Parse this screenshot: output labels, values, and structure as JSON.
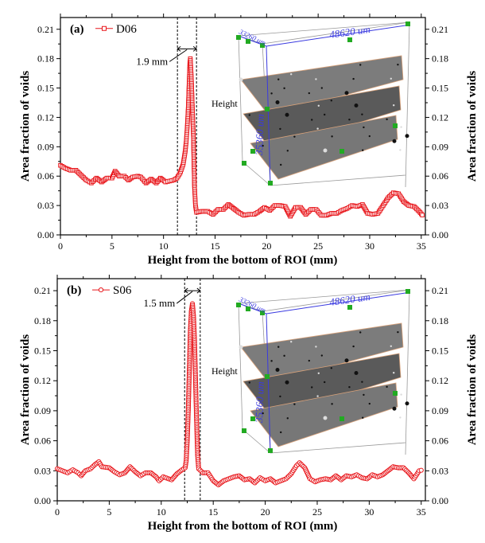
{
  "chart_data": [
    {
      "type": "scatter",
      "panel_label": "(a)",
      "xlabel": "Height from the bottom of ROI (mm)",
      "ylabel": "Area fraction of voids",
      "ylabel_right": "Area fraction of voids",
      "xlim": [
        0,
        35.4
      ],
      "ylim": [
        0,
        0.222
      ],
      "xticks": [
        0,
        5,
        10,
        15,
        20,
        25,
        30,
        35
      ],
      "yticks": [
        "0.00",
        "0.03",
        "0.06",
        "0.09",
        "0.12",
        "0.15",
        "0.18",
        "0.21"
      ],
      "grid": false,
      "legend_position": "top-left",
      "marker": "square",
      "color": "#e8161b",
      "dashed_lines_x": [
        11.35,
        13.2
      ],
      "annotation": "1.9 mm",
      "inset": {
        "width_label": "48620 um",
        "depth_label": "33260 um",
        "height_label": "35360 um",
        "axis_label": "Height"
      },
      "series": [
        {
          "name": "D06",
          "points": [
            [
              0,
              0.071
            ],
            [
              0.5,
              0.068
            ],
            [
              1,
              0.066
            ],
            [
              1.5,
              0.066
            ],
            [
              2,
              0.061
            ],
            [
              2.5,
              0.056
            ],
            [
              3,
              0.053
            ],
            [
              3.5,
              0.058
            ],
            [
              4,
              0.054
            ],
            [
              4.5,
              0.058
            ],
            [
              5,
              0.058
            ],
            [
              5.3,
              0.065
            ],
            [
              5.7,
              0.06
            ],
            [
              6.2,
              0.06
            ],
            [
              6.6,
              0.056
            ],
            [
              7,
              0.059
            ],
            [
              7.5,
              0.06
            ],
            [
              7.8,
              0.059
            ],
            [
              8.3,
              0.053
            ],
            [
              8.8,
              0.057
            ],
            [
              9.3,
              0.053
            ],
            [
              9.7,
              0.058
            ],
            [
              10.2,
              0.054
            ],
            [
              10.6,
              0.055
            ],
            [
              11,
              0.056
            ],
            [
              11.3,
              0.058
            ],
            [
              11.6,
              0.063
            ],
            [
              11.9,
              0.072
            ],
            [
              12.1,
              0.085
            ],
            [
              12.2,
              0.095
            ],
            [
              12.3,
              0.11
            ],
            [
              12.4,
              0.13
            ],
            [
              12.5,
              0.16
            ],
            [
              12.55,
              0.175
            ],
            [
              12.6,
              0.18
            ],
            [
              12.7,
              0.16
            ],
            [
              12.8,
              0.13
            ],
            [
              12.9,
              0.1
            ],
            [
              12.95,
              0.075
            ],
            [
              13,
              0.05
            ],
            [
              13.1,
              0.03
            ],
            [
              13.2,
              0.023
            ],
            [
              13.7,
              0.024
            ],
            [
              14.3,
              0.024
            ],
            [
              14.8,
              0.021
            ],
            [
              15.3,
              0.026
            ],
            [
              15.8,
              0.026
            ],
            [
              16.3,
              0.031
            ],
            [
              16.8,
              0.027
            ],
            [
              17.3,
              0.023
            ],
            [
              17.8,
              0.02
            ],
            [
              18.3,
              0.021
            ],
            [
              18.8,
              0.021
            ],
            [
              19.3,
              0.024
            ],
            [
              19.8,
              0.028
            ],
            [
              20.3,
              0.025
            ],
            [
              20.8,
              0.03
            ],
            [
              21.3,
              0.03
            ],
            [
              21.8,
              0.029
            ],
            [
              22.3,
              0.019
            ],
            [
              22.8,
              0.028
            ],
            [
              23.3,
              0.028
            ],
            [
              23.8,
              0.021
            ],
            [
              24.3,
              0.026
            ],
            [
              24.8,
              0.026
            ],
            [
              25.3,
              0.02
            ],
            [
              25.8,
              0.02
            ],
            [
              26.3,
              0.022
            ],
            [
              26.8,
              0.022
            ],
            [
              27.3,
              0.025
            ],
            [
              27.8,
              0.027
            ],
            [
              28.3,
              0.03
            ],
            [
              28.8,
              0.029
            ],
            [
              29.3,
              0.031
            ],
            [
              29.8,
              0.022
            ],
            [
              30.3,
              0.021
            ],
            [
              30.8,
              0.022
            ],
            [
              31.3,
              0.03
            ],
            [
              31.8,
              0.038
            ],
            [
              32.3,
              0.043
            ],
            [
              32.8,
              0.042
            ],
            [
              33.3,
              0.034
            ],
            [
              33.8,
              0.03
            ],
            [
              34.3,
              0.029
            ],
            [
              34.8,
              0.024
            ],
            [
              35.2,
              0.019
            ]
          ]
        }
      ]
    },
    {
      "type": "scatter",
      "panel_label": "(b)",
      "xlabel": "Height from the bottom of ROI (mm)",
      "ylabel": "Area fraction of voids",
      "ylabel_right": "Area fraction of voids",
      "xlim": [
        0,
        35.4
      ],
      "ylim": [
        0,
        0.222
      ],
      "xticks": [
        0,
        5,
        10,
        15,
        20,
        25,
        30,
        35
      ],
      "yticks": [
        "0.00",
        "0.03",
        "0.06",
        "0.09",
        "0.12",
        "0.15",
        "0.18",
        "0.21"
      ],
      "grid": false,
      "legend_position": "top-left",
      "marker": "circle",
      "color": "#e8161b",
      "dashed_lines_x": [
        12.25,
        13.75
      ],
      "annotation": "1.5 mm",
      "inset": {
        "width_label": "48620 um",
        "depth_label": "33260 um",
        "height_label": "35360 um",
        "axis_label": "Height"
      },
      "series": [
        {
          "name": "S06",
          "points": [
            [
              0,
              0.032
            ],
            [
              0.5,
              0.03
            ],
            [
              1,
              0.028
            ],
            [
              1.5,
              0.031
            ],
            [
              2,
              0.028
            ],
            [
              2.3,
              0.025
            ],
            [
              2.7,
              0.03
            ],
            [
              3.2,
              0.032
            ],
            [
              3.6,
              0.036
            ],
            [
              4,
              0.039
            ],
            [
              4.3,
              0.034
            ],
            [
              5,
              0.033
            ],
            [
              5.5,
              0.029
            ],
            [
              6,
              0.026
            ],
            [
              6.5,
              0.028
            ],
            [
              7,
              0.034
            ],
            [
              7.5,
              0.029
            ],
            [
              8,
              0.025
            ],
            [
              8.5,
              0.028
            ],
            [
              9,
              0.028
            ],
            [
              9.5,
              0.024
            ],
            [
              9.8,
              0.02
            ],
            [
              10.2,
              0.024
            ],
            [
              10.7,
              0.022
            ],
            [
              11,
              0.021
            ],
            [
              11.5,
              0.027
            ],
            [
              12,
              0.031
            ],
            [
              12.3,
              0.033
            ],
            [
              12.4,
              0.04
            ],
            [
              12.5,
              0.06
            ],
            [
              12.6,
              0.09
            ],
            [
              12.7,
              0.13
            ],
            [
              12.8,
              0.17
            ],
            [
              12.9,
              0.19
            ],
            [
              13,
              0.197
            ],
            [
              13.1,
              0.185
            ],
            [
              13.2,
              0.16
            ],
            [
              13.3,
              0.12
            ],
            [
              13.4,
              0.08
            ],
            [
              13.5,
              0.045
            ],
            [
              13.6,
              0.032
            ],
            [
              14,
              0.028
            ],
            [
              14.5,
              0.028
            ],
            [
              15,
              0.02
            ],
            [
              15.5,
              0.016
            ],
            [
              16,
              0.02
            ],
            [
              16.5,
              0.022
            ],
            [
              17,
              0.024
            ],
            [
              17.5,
              0.025
            ],
            [
              18,
              0.021
            ],
            [
              18.5,
              0.022
            ],
            [
              19,
              0.018
            ],
            [
              19.5,
              0.023
            ],
            [
              20,
              0.02
            ],
            [
              20.5,
              0.022
            ],
            [
              21,
              0.018
            ],
            [
              21.5,
              0.02
            ],
            [
              22,
              0.022
            ],
            [
              22.5,
              0.027
            ],
            [
              23,
              0.035
            ],
            [
              23.3,
              0.038
            ],
            [
              23.8,
              0.033
            ],
            [
              24.3,
              0.022
            ],
            [
              24.8,
              0.019
            ],
            [
              25.3,
              0.021
            ],
            [
              25.8,
              0.022
            ],
            [
              26.3,
              0.021
            ],
            [
              26.8,
              0.025
            ],
            [
              27.3,
              0.021
            ],
            [
              27.8,
              0.025
            ],
            [
              28.3,
              0.024
            ],
            [
              28.8,
              0.026
            ],
            [
              29.3,
              0.023
            ],
            [
              29.8,
              0.022
            ],
            [
              30.3,
              0.026
            ],
            [
              30.8,
              0.024
            ],
            [
              31.3,
              0.026
            ],
            [
              31.8,
              0.03
            ],
            [
              32.3,
              0.034
            ],
            [
              32.8,
              0.033
            ],
            [
              33.3,
              0.033
            ],
            [
              33.8,
              0.028
            ],
            [
              34.3,
              0.022
            ],
            [
              34.8,
              0.03
            ],
            [
              35.2,
              0.031
            ]
          ]
        }
      ]
    }
  ]
}
